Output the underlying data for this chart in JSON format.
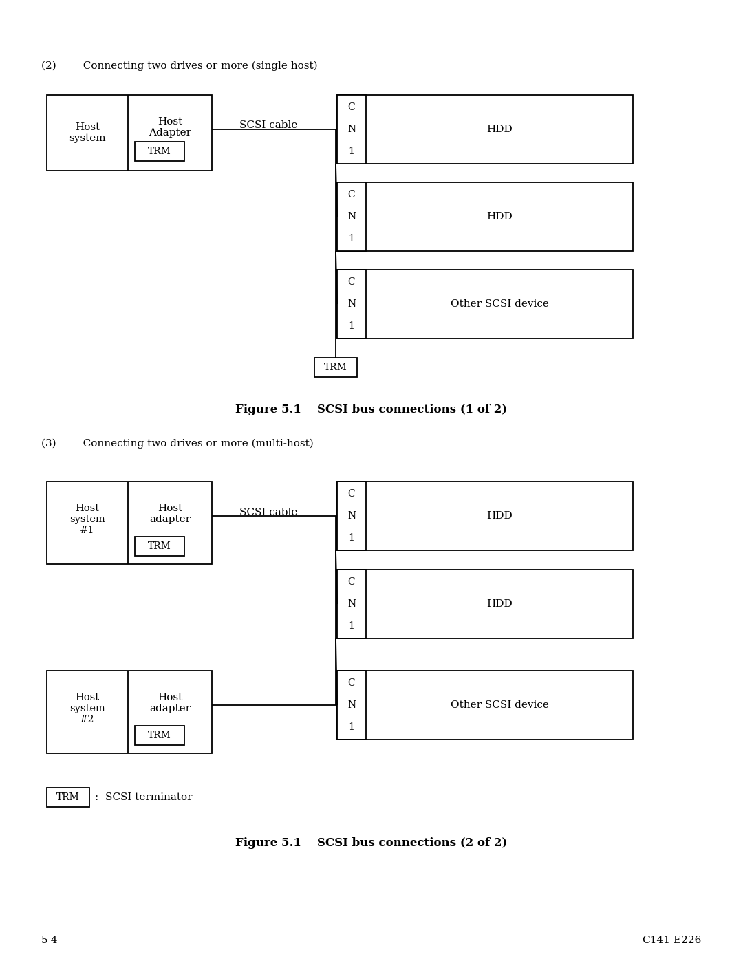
{
  "bg_color": "#ffffff",
  "text_color": "#000000",
  "line_color": "#000000",
  "fig_width": 10.8,
  "fig_height": 13.97,
  "section1_label": "(2)        Connecting two drives or more (single host)",
  "section2_label": "(3)        Connecting two drives or more (multi-host)",
  "figure_caption1": "Figure 5.1    SCSI bus connections (1 of 2)",
  "figure_caption2": "Figure 5.1    SCSI bus connections (2 of 2)",
  "footer_left": "5-4",
  "footer_right": "C141-E226",
  "trm_legend_text": ":  SCSI terminator"
}
